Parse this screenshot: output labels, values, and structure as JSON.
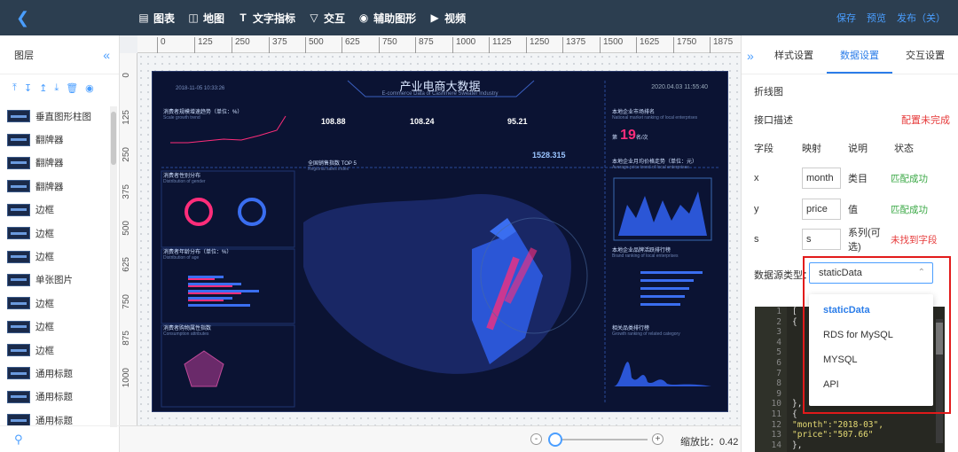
{
  "topbar": {
    "tools": [
      {
        "name": "chart",
        "icon": "bar-chart-icon",
        "label": "图表"
      },
      {
        "name": "map",
        "icon": "map-icon",
        "label": "地图"
      },
      {
        "name": "text",
        "icon": "text-icon",
        "label": "文字指标"
      },
      {
        "name": "interact",
        "icon": "interact-icon",
        "label": "交互"
      },
      {
        "name": "aux",
        "icon": "shapes-icon",
        "label": "辅助图形"
      },
      {
        "name": "video",
        "icon": "video-icon",
        "label": "视频"
      }
    ],
    "save": "保存",
    "preview": "预览",
    "publish": "发布（关）"
  },
  "left": {
    "title": "图层",
    "layers": [
      "垂直图形柱图",
      "翻牌器",
      "翻牌器",
      "翻牌器",
      "边框",
      "边框",
      "边框",
      "单张图片",
      "边框",
      "边框",
      "边框",
      "通用标题",
      "通用标题",
      "通用标题"
    ]
  },
  "ruler": {
    "h": [
      "0",
      "125",
      "250",
      "375",
      "500",
      "625",
      "750",
      "875",
      "1000",
      "1125",
      "1250",
      "1375",
      "1500",
      "1625",
      "1750",
      "1875"
    ],
    "v": [
      "0",
      "125",
      "250",
      "375",
      "500",
      "625",
      "750",
      "875",
      "1000"
    ]
  },
  "dashboard": {
    "title": "产业电商大数据",
    "subtitle": "E-commerce Data of Cashmere Sweater Industry",
    "date_left": "2018-11-05  10:33:26",
    "date_right": "2020.04.03  11:55:40",
    "kpi1": "108.88",
    "kpi2": "108.24",
    "kpi3": "95.21",
    "big_number": "1528.315",
    "rank": "19",
    "rank_prefix": "第",
    "rank_suffix": "名/次",
    "labels": {
      "scale": "消费者规模增速趋势（单位：%）",
      "scale_en": "Scale growth trend",
      "gender": "消费者性别分布",
      "gender_en": "Distribution of gender",
      "age": "消费者年龄分布（单位：%）",
      "age_en": "Distribution of age",
      "consume": "消费者购物属性指数",
      "consume_en": "Consumption attributes",
      "region": "全国销售指数 TOP 5",
      "region_en": "Regional sales index",
      "rank_title": "本地企业市场排名",
      "rank_en": "National market ranking of local enterprises",
      "price": "本地企业月均价格走势（单位：元）",
      "price_en": "Average price trend of local enterprises",
      "brand": "本地企业品牌活跃排行榜",
      "brand_en": "Brand ranking of local enterprises",
      "category": "相关品类排行榜",
      "category_en": "Growth ranking of related category"
    }
  },
  "zoom": {
    "minus": "-",
    "plus": "+",
    "label": "缩放比：0.42",
    "level": 0.42
  },
  "right": {
    "tabs": [
      "样式设置",
      "数据设置",
      "交互设置"
    ],
    "active_tab": 1,
    "chart_type": "折线图",
    "interface_label": "接口描述",
    "interface_status": "配置未完成",
    "headers": [
      "字段",
      "映射",
      "说明",
      "状态"
    ],
    "fields": [
      {
        "name": "x",
        "map": "month",
        "desc": "类目",
        "status": "匹配成功",
        "ok": true
      },
      {
        "name": "y",
        "map": "price",
        "desc": "值",
        "status": "匹配成功",
        "ok": true
      },
      {
        "name": "s",
        "map": "s",
        "desc": "系列(可选)",
        "status": "未找到字段",
        "ok": false
      }
    ],
    "source_label": "数据源类型：",
    "source_value": "staticData",
    "options": [
      "staticData",
      "RDS for MySQL",
      "MYSQL",
      "API"
    ],
    "code_lines": [
      "1",
      "2",
      "3",
      "4",
      "5",
      "6",
      "7",
      "8",
      "9",
      "10",
      "11",
      "12",
      "13",
      "14"
    ],
    "code": [
      {
        "t": "[",
        "c": ""
      },
      {
        "t": "  {",
        "c": ""
      },
      {
        "t": "",
        "c": ""
      },
      {
        "t": "",
        "c": ""
      },
      {
        "t": "",
        "c": ""
      },
      {
        "t": "",
        "c": ""
      },
      {
        "t": "",
        "c": ""
      },
      {
        "t": "",
        "c": ""
      },
      {
        "t": "",
        "c": ""
      },
      {
        "t": "  },",
        "c": ""
      },
      {
        "t": "  {",
        "c": ""
      },
      {
        "t": "    \"month\":\"2018-03\",",
        "c": "str"
      },
      {
        "t": "    \"price\":\"507.66\"",
        "c": "str"
      },
      {
        "t": "  },",
        "c": ""
      }
    ]
  }
}
